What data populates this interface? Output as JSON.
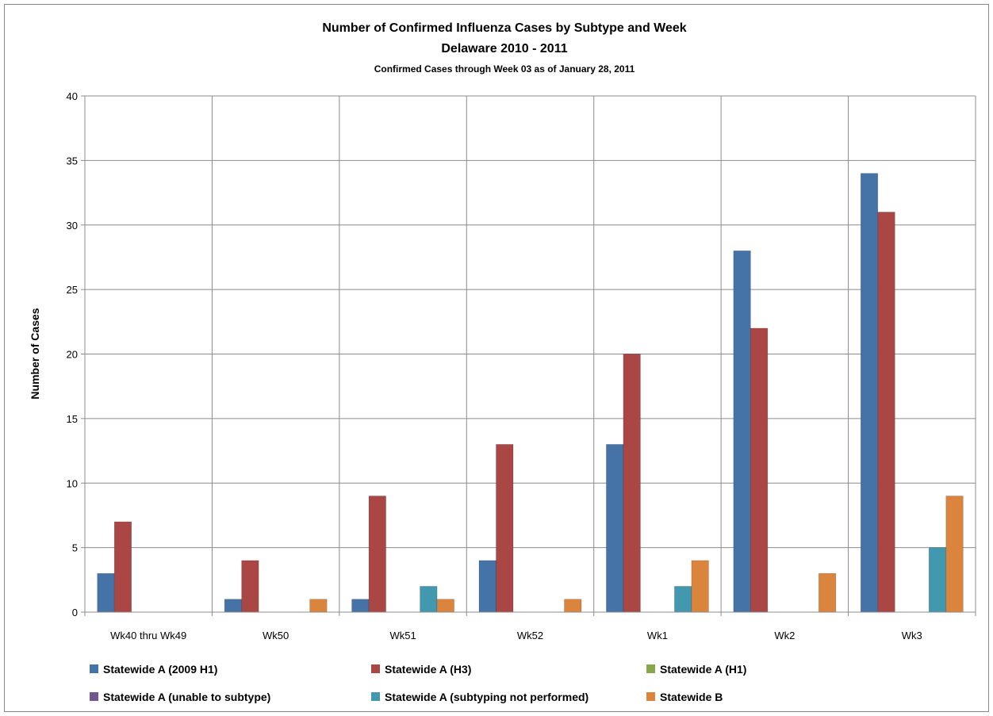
{
  "chart_data": {
    "type": "bar",
    "title": "Number of Confirmed Influenza Cases by Subtype and Week",
    "subtitle": "Delaware 2010 - 2011",
    "subtitle2": "Confirmed Cases through Week 03 as of January 28, 2011",
    "xlabel": "",
    "ylabel": "Number of Cases",
    "ylim": [
      0,
      40
    ],
    "yticks": [
      0,
      5,
      10,
      15,
      20,
      25,
      30,
      35,
      40
    ],
    "grid": true,
    "legend_position": "bottom",
    "categories": [
      "Wk40 thru Wk49",
      "Wk50",
      "Wk51",
      "Wk52",
      "Wk1",
      "Wk2",
      "Wk3"
    ],
    "series": [
      {
        "name": "Statewide A (2009 H1)",
        "color": "#4572A7",
        "values": [
          3,
          1,
          1,
          4,
          13,
          28,
          34
        ]
      },
      {
        "name": "Statewide A (H3)",
        "color": "#AA4643",
        "values": [
          7,
          4,
          9,
          13,
          20,
          22,
          31
        ]
      },
      {
        "name": "Statewide A (H1)",
        "color": "#89A54E",
        "values": [
          0,
          0,
          0,
          0,
          0,
          0,
          0
        ]
      },
      {
        "name": "Statewide A (unable to subtype)",
        "color": "#71588F",
        "values": [
          0,
          0,
          0,
          0,
          0,
          0,
          0
        ]
      },
      {
        "name": "Statewide A (subtyping not performed)",
        "color": "#4198AF",
        "values": [
          0,
          0,
          2,
          0,
          2,
          0,
          5
        ]
      },
      {
        "name": "Statewide B",
        "color": "#DB843D",
        "values": [
          0,
          1,
          1,
          1,
          4,
          3,
          9
        ]
      }
    ]
  }
}
